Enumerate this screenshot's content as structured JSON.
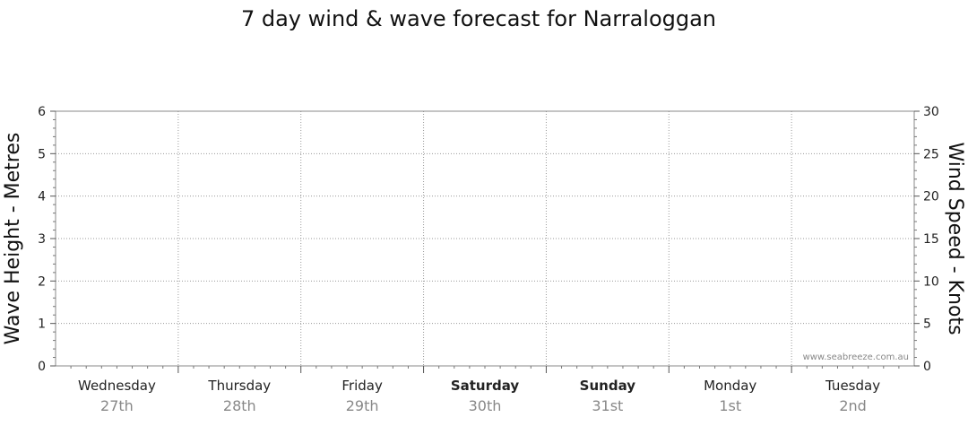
{
  "chart_data": {
    "type": "line",
    "title": "7 day wind & wave forecast for Narraloggan",
    "ylabel_left": "Wave Height - Metres",
    "ylabel_right": "Wind Speed - Knots",
    "ylim_left": [
      0,
      6
    ],
    "ylim_right": [
      0,
      30
    ],
    "yticks_left": [
      0,
      1,
      2,
      3,
      4,
      5,
      6
    ],
    "yticks_right": [
      0,
      5,
      10,
      15,
      20,
      25,
      30
    ],
    "days": [
      {
        "name": "Wednesday",
        "date": "27th",
        "bold": false
      },
      {
        "name": "Thursday",
        "date": "28th",
        "bold": false
      },
      {
        "name": "Friday",
        "date": "29th",
        "bold": false
      },
      {
        "name": "Saturday",
        "date": "30th",
        "bold": true
      },
      {
        "name": "Sunday",
        "date": "31st",
        "bold": true
      },
      {
        "name": "Monday",
        "date": "1st",
        "bold": false
      },
      {
        "name": "Tuesday",
        "date": "2nd",
        "bold": false
      }
    ],
    "series": [],
    "grid": true,
    "watermark": "www.seabreeze.com.au"
  }
}
